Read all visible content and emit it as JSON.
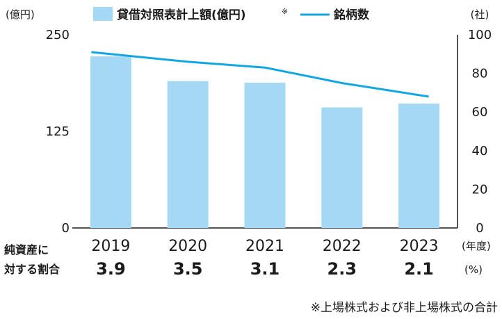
{
  "colors": {
    "bar": "#a5d8f5",
    "line": "#12a7e3",
    "axis": "#1a1a1a"
  },
  "legend": {
    "bar_label": "貸借対照表計上額(億円)",
    "bar_note_mark": "※",
    "line_label": "銘柄数"
  },
  "axis_units": {
    "left": "(億円)",
    "right": "(社)",
    "x": "(年度)",
    "ratio": "(%)"
  },
  "ratio_row_label": [
    "純資産に",
    "対する割合"
  ],
  "ratios": [
    "3.9",
    "3.5",
    "3.1",
    "2.3",
    "2.1"
  ],
  "footnote": "※上場株式および非上場株式の合計",
  "chart_data": {
    "type": "bar",
    "categories": [
      "2019",
      "2020",
      "2021",
      "2022",
      "2023"
    ],
    "series": [
      {
        "name": "貸借対照表計上額(億円)",
        "type": "bar",
        "axis": "left",
        "values": [
          222,
          190,
          188,
          156,
          161
        ]
      },
      {
        "name": "銘柄数",
        "type": "line",
        "axis": "right",
        "values": [
          91,
          86,
          83,
          75,
          68
        ]
      }
    ],
    "left_axis": {
      "ylim": [
        0,
        250
      ],
      "ticks": [
        "0",
        "125",
        "250"
      ]
    },
    "right_axis": {
      "ylim": [
        0,
        100
      ],
      "ticks": [
        "0",
        "20",
        "40",
        "60",
        "80",
        "100"
      ]
    }
  }
}
